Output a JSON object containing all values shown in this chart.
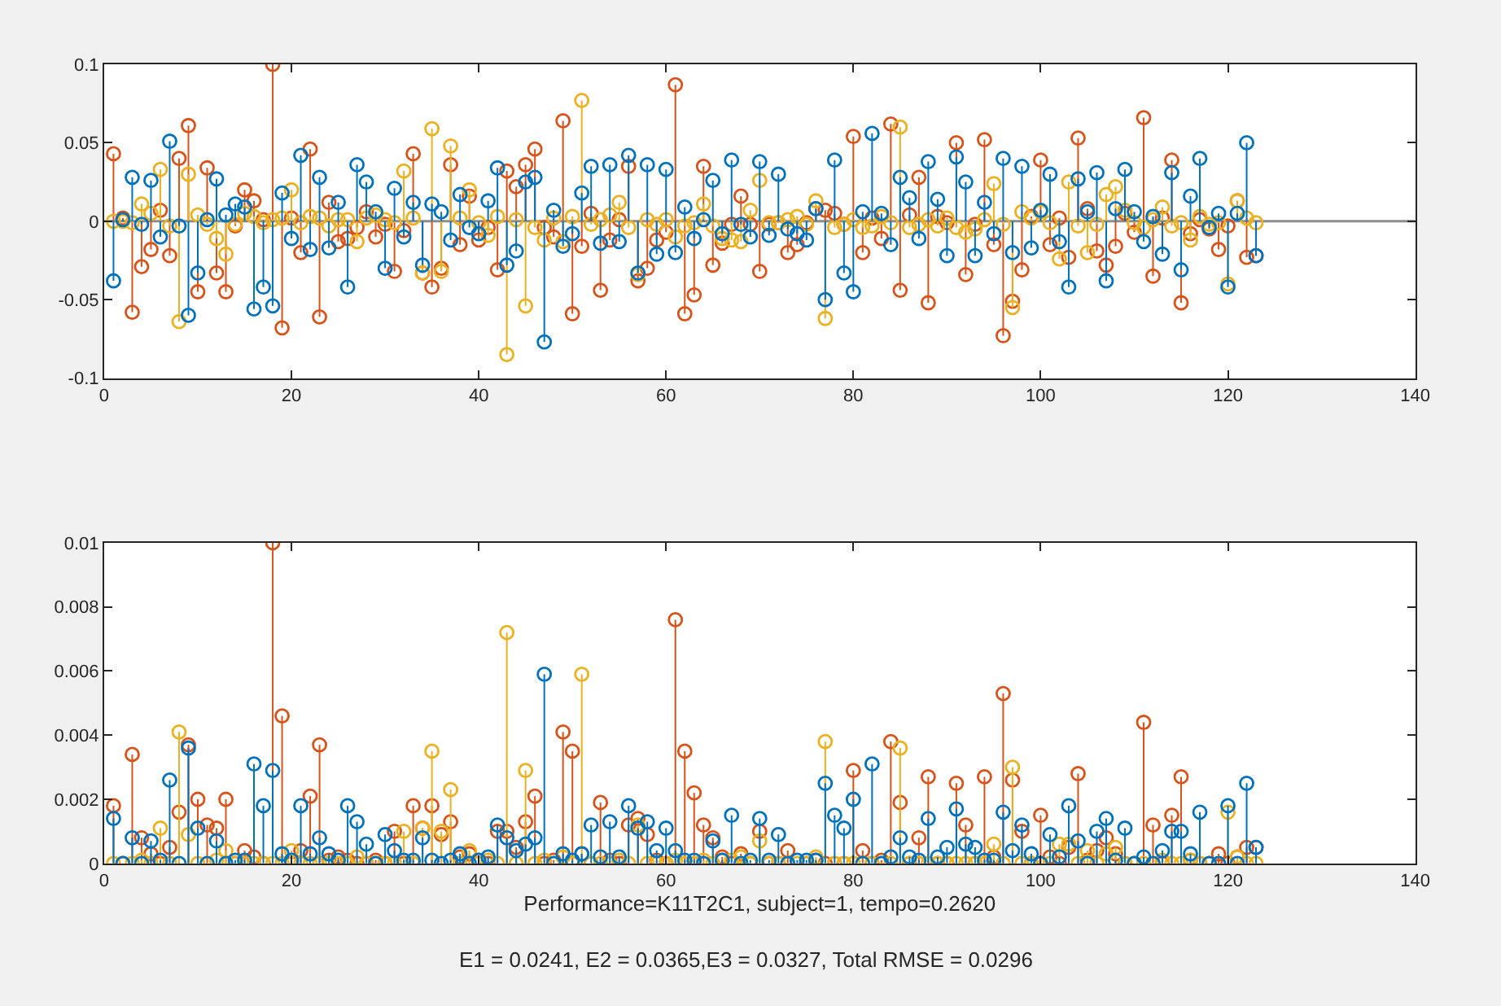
{
  "chart_data": [
    {
      "type": "lollipop",
      "marker": "circle",
      "x": [
        1,
        2,
        3,
        4,
        5,
        6,
        7,
        8,
        9,
        10,
        11,
        12,
        13,
        14,
        15,
        16,
        17,
        18,
        19,
        20,
        21,
        22,
        23,
        24,
        25,
        26,
        27,
        28,
        29,
        30,
        31,
        32,
        33,
        34,
        35,
        36,
        37,
        38,
        39,
        40,
        41,
        42,
        43,
        44,
        45,
        46,
        47,
        48,
        49,
        50,
        51,
        52,
        53,
        54,
        55,
        56,
        57,
        58,
        59,
        60,
        61,
        62,
        63,
        64,
        65,
        66,
        67,
        68,
        69,
        70,
        71,
        72,
        73,
        74,
        75,
        76,
        77,
        78,
        79,
        80,
        81,
        82,
        83,
        84,
        85,
        86,
        87,
        88,
        89,
        90,
        91,
        92,
        93,
        94,
        95,
        96,
        97,
        98,
        99,
        100,
        101,
        102,
        103,
        104,
        105,
        106,
        107,
        108,
        109,
        110,
        111,
        112,
        113,
        114,
        115,
        116,
        117,
        118,
        119,
        120,
        121,
        122,
        123
      ],
      "xlim": [
        0,
        140
      ],
      "xticks": [
        0,
        20,
        40,
        60,
        80,
        100,
        120,
        140
      ],
      "ylim": [
        -0.1,
        0.1
      ],
      "yticks": [
        -0.1,
        -0.05,
        0,
        0.05,
        0.1
      ],
      "ref_lines": [
        {
          "axis": "y",
          "value": 0,
          "color": "#8c8c8c"
        }
      ],
      "series": [
        {
          "color": "#d95319",
          "values": [
            0.043,
            0.002,
            -0.058,
            -0.029,
            -0.018,
            0.007,
            -0.022,
            0.04,
            0.061,
            -0.045,
            0.034,
            -0.033,
            -0.045,
            -0.003,
            0.02,
            0.013,
            0.001,
            0.1,
            -0.068,
            0.002,
            -0.02,
            0.046,
            -0.061,
            0.012,
            -0.013,
            -0.011,
            -0.004,
            0.006,
            -0.01,
            -0.002,
            -0.032,
            -0.006,
            0.043,
            -0.033,
            -0.042,
            -0.03,
            0.036,
            -0.015,
            0.016,
            -0.012,
            -0.004,
            -0.031,
            0.032,
            0.022,
            0.036,
            0.046,
            -0.004,
            -0.01,
            0.064,
            -0.059,
            -0.016,
            0.005,
            -0.044,
            -0.012,
            0.001,
            0.035,
            -0.038,
            -0.03,
            -0.012,
            -0.007,
            0.087,
            -0.059,
            -0.047,
            0.035,
            -0.028,
            -0.014,
            -0.002,
            0.016,
            -0.002,
            -0.032,
            -0.002,
            -0.001,
            -0.02,
            -0.015,
            -0.001,
            0.008,
            0.007,
            0.005,
            -0.002,
            0.054,
            -0.02,
            0.002,
            -0.011,
            0.062,
            -0.044,
            0.004,
            0.028,
            -0.052,
            0.003,
            -0.001,
            0.05,
            -0.034,
            -0.002,
            0.052,
            -0.015,
            -0.073,
            -0.051,
            -0.031,
            0.003,
            0.039,
            -0.015,
            0.002,
            -0.023,
            0.053,
            0.008,
            -0.019,
            -0.028,
            -0.016,
            0.005,
            -0.007,
            0.066,
            -0.035,
            0.002,
            0.039,
            -0.052,
            -0.008,
            0.001,
            -0.005,
            -0.018,
            -0.003,
            0.013,
            -0.023,
            -0.022
          ]
        },
        {
          "color": "#edb120",
          "values": [
            0.0,
            0.0,
            -0.001,
            0.011,
            0.005,
            0.033,
            -0.003,
            -0.064,
            0.03,
            0.004,
            -0.002,
            -0.011,
            -0.021,
            -0.002,
            0.005,
            0.003,
            -0.001,
            0.001,
            0.002,
            0.02,
            -0.001,
            0.003,
            0.002,
            -0.003,
            0.001,
            0.001,
            -0.013,
            0.002,
            0.004,
            0.001,
            -0.001,
            0.032,
            0.002,
            -0.033,
            0.059,
            -0.032,
            0.048,
            0.002,
            0.02,
            -0.001,
            -0.009,
            0.003,
            -0.085,
            0.001,
            -0.054,
            -0.004,
            -0.012,
            0.002,
            -0.013,
            0.003,
            0.077,
            -0.002,
            0.001,
            0.004,
            0.012,
            -0.004,
            -0.034,
            0.001,
            -0.002,
            0.001,
            -0.01,
            -0.003,
            -0.001,
            0.011,
            -0.003,
            -0.011,
            -0.012,
            -0.013,
            0.007,
            0.026,
            -0.001,
            -0.001,
            0.001,
            0.003,
            -0.002,
            0.013,
            -0.062,
            -0.004,
            -0.002,
            0.001,
            -0.004,
            -0.003,
            0.003,
            -0.001,
            0.06,
            -0.004,
            -0.002,
            0.001,
            -0.003,
            0.002,
            -0.004,
            -0.007,
            -0.005,
            0.001,
            0.024,
            -0.002,
            -0.055,
            0.006,
            0.002,
            0.006,
            -0.001,
            -0.024,
            0.025,
            -0.003,
            -0.02,
            -0.002,
            0.017,
            0.022,
            0.007,
            -0.001,
            -0.004,
            0.001,
            0.009,
            -0.003,
            -0.001,
            -0.012,
            0.003,
            -0.002,
            -0.001,
            -0.04,
            0.013,
            0.002,
            -0.001
          ]
        },
        {
          "color": "#0072bd",
          "values": [
            -0.038,
            0.001,
            0.028,
            -0.002,
            0.026,
            -0.01,
            0.051,
            -0.003,
            -0.06,
            -0.033,
            0.001,
            0.027,
            0.004,
            0.011,
            0.009,
            -0.056,
            -0.042,
            -0.054,
            0.018,
            -0.011,
            0.042,
            -0.018,
            0.028,
            -0.017,
            0.012,
            -0.042,
            0.036,
            0.025,
            0.006,
            -0.03,
            0.021,
            -0.01,
            0.012,
            -0.028,
            0.011,
            0.006,
            -0.012,
            0.017,
            -0.004,
            -0.008,
            0.013,
            0.034,
            -0.028,
            -0.019,
            0.025,
            0.028,
            -0.077,
            0.007,
            -0.016,
            -0.008,
            0.018,
            0.035,
            -0.014,
            0.036,
            -0.013,
            0.042,
            -0.033,
            0.036,
            -0.021,
            0.033,
            -0.02,
            0.009,
            -0.011,
            0.001,
            0.026,
            -0.008,
            0.039,
            -0.002,
            -0.01,
            0.038,
            -0.009,
            0.03,
            -0.005,
            -0.008,
            -0.012,
            0.008,
            -0.05,
            0.039,
            -0.033,
            -0.045,
            0.006,
            0.056,
            0.005,
            -0.015,
            0.028,
            0.015,
            -0.011,
            0.038,
            0.014,
            -0.022,
            0.041,
            0.025,
            -0.022,
            0.012,
            -0.008,
            0.04,
            -0.02,
            0.035,
            -0.017,
            0.007,
            0.03,
            -0.013,
            -0.042,
            0.027,
            0.006,
            0.031,
            -0.038,
            0.008,
            0.033,
            0.006,
            -0.013,
            0.003,
            -0.021,
            0.031,
            -0.031,
            0.016,
            0.04,
            -0.004,
            0.005,
            -0.042,
            0.005,
            0.05,
            -0.022
          ]
        }
      ]
    },
    {
      "type": "lollipop",
      "marker": "circle",
      "xlabel": "Performance=K11T2C1, subject=1, tempo=0.2620",
      "annotations": [
        "E1 = 0.0241, E2 = 0.0365,E3 = 0.0327, Total RMSE = 0.0296"
      ],
      "x": [
        1,
        2,
        3,
        4,
        5,
        6,
        7,
        8,
        9,
        10,
        11,
        12,
        13,
        14,
        15,
        16,
        17,
        18,
        19,
        20,
        21,
        22,
        23,
        24,
        25,
        26,
        27,
        28,
        29,
        30,
        31,
        32,
        33,
        34,
        35,
        36,
        37,
        38,
        39,
        40,
        41,
        42,
        43,
        44,
        45,
        46,
        47,
        48,
        49,
        50,
        51,
        52,
        53,
        54,
        55,
        56,
        57,
        58,
        59,
        60,
        61,
        62,
        63,
        64,
        65,
        66,
        67,
        68,
        69,
        70,
        71,
        72,
        73,
        74,
        75,
        76,
        77,
        78,
        79,
        80,
        81,
        82,
        83,
        84,
        85,
        86,
        87,
        88,
        89,
        90,
        91,
        92,
        93,
        94,
        95,
        96,
        97,
        98,
        99,
        100,
        101,
        102,
        103,
        104,
        105,
        106,
        107,
        108,
        109,
        110,
        111,
        112,
        113,
        114,
        115,
        116,
        117,
        118,
        119,
        120,
        121,
        122,
        123
      ],
      "xlim": [
        0,
        140
      ],
      "xticks": [
        0,
        20,
        40,
        60,
        80,
        100,
        120,
        140
      ],
      "ylim": [
        0,
        0.01
      ],
      "yticks": [
        0,
        0.002,
        0.004,
        0.006,
        0.008,
        0.01
      ],
      "series": [
        {
          "color": "#d95319",
          "values": [
            0.0018,
            0,
            0.0034,
            0.0008,
            0.0003,
            0,
            0.0005,
            0.0016,
            0.0037,
            0.002,
            0.0012,
            0.0011,
            0.002,
            0,
            0.0004,
            0.0002,
            0,
            0.01,
            0.0046,
            0,
            0.0004,
            0.0021,
            0.0037,
            0.0001,
            0.0002,
            0.0001,
            0,
            0,
            0.0001,
            0,
            0.001,
            0,
            0.0018,
            0.0011,
            0.0018,
            0.0009,
            0.0013,
            0.0002,
            0.0003,
            0.0001,
            0,
            0.001,
            0.001,
            0.0005,
            0.0013,
            0.0021,
            0,
            0.0001,
            0.0041,
            0.0035,
            0.0003,
            0,
            0.0019,
            0.0001,
            0,
            0.0012,
            0.0014,
            0.0009,
            0.0001,
            0,
            0.0076,
            0.0035,
            0.0022,
            0.0012,
            0.0008,
            0.0002,
            0,
            0.0003,
            0,
            0.001,
            0,
            0,
            0.0004,
            null,
            0,
            0.0001,
            0,
            0,
            0,
            0.0029,
            0.0004,
            0,
            0.0001,
            0.0038,
            0.0019,
            0,
            0.0008,
            0.0027,
            0,
            0,
            0.0025,
            0.0012,
            0,
            0.0027,
            0.0002,
            0.0053,
            0.0026,
            0.001,
            0,
            0.0015,
            0.0002,
            0,
            0.0005,
            0.0028,
            0.0001,
            0.0004,
            0.0008,
            0.0003,
            0,
            0,
            0.0044,
            0.0012,
            0,
            0.0015,
            0.0027,
            0.0001,
            0,
            0,
            0.0003,
            0,
            0.0002,
            0.0005,
            0.0005
          ]
        },
        {
          "color": "#edb120",
          "values": [
            0,
            0,
            0,
            0.0001,
            0,
            0.0011,
            0,
            0.0041,
            0.0009,
            0,
            0,
            0.0001,
            0.0004,
            0,
            0,
            0,
            0,
            0,
            0,
            0.0004,
            0,
            0,
            0,
            0,
            0,
            0,
            0.0002,
            0,
            0,
            0,
            0,
            0.001,
            0,
            0.0011,
            0.0035,
            0.001,
            0.0023,
            0,
            0.0004,
            0,
            0.0001,
            0,
            0.0072,
            0,
            0.0029,
            0,
            0.0001,
            0,
            0.0002,
            0,
            0.0059,
            0,
            0,
            0,
            0.0001,
            0,
            0.0012,
            0,
            0,
            0,
            0.0001,
            0,
            0,
            0.0001,
            0,
            0.0001,
            0.0001,
            0.0002,
            0,
            0.0007,
            0,
            0,
            0,
            0,
            0,
            0.0002,
            0.0038,
            0,
            0,
            0,
            0,
            0,
            0,
            0,
            0.0036,
            0,
            0,
            0,
            0,
            0,
            0,
            0,
            0,
            0,
            0.0006,
            0,
            0.003,
            0,
            0,
            0,
            0,
            0.0006,
            0.0006,
            0,
            0.0004,
            0,
            0.0003,
            0.0005,
            0,
            0,
            0,
            0,
            0.0001,
            0,
            0,
            0.0001,
            0,
            0,
            0,
            0.0016,
            0.0002,
            0,
            0
          ]
        },
        {
          "color": "#0072bd",
          "values": [
            0.0014,
            0,
            0.0008,
            0,
            0.0007,
            0.0001,
            0.0026,
            0,
            0.0036,
            0.0011,
            0,
            0.0007,
            0,
            0.0001,
            0.0001,
            0.0031,
            0.0018,
            0.0029,
            0.0003,
            0.0001,
            0.0018,
            0.0003,
            0.0008,
            0.0003,
            0.0001,
            0.0018,
            0.0013,
            0.0006,
            0,
            0.0009,
            0.0004,
            0.0001,
            0.0001,
            0.0008,
            0.0001,
            0,
            0.0001,
            0.0003,
            0,
            0.0001,
            0.0002,
            0.0012,
            0.0008,
            0.0004,
            0.0006,
            0.0008,
            0.0059,
            0,
            0.0003,
            0.0001,
            0.0003,
            0.0012,
            0.0002,
            0.0013,
            0.0002,
            0.0018,
            0.0011,
            0.0013,
            0.0004,
            0.0011,
            0.0004,
            0.0001,
            0.0001,
            0,
            0.0007,
            0.0001,
            0.0015,
            0,
            0.0001,
            0.0014,
            0.0001,
            0.0009,
            0,
            0.0001,
            0.0001,
            0.0001,
            0.0025,
            0.0015,
            0.0011,
            0.002,
            0,
            0.0031,
            0,
            0.0002,
            0.0008,
            0.0002,
            0.0001,
            0.0014,
            0.0002,
            0.0005,
            0.0017,
            0.0006,
            0.0005,
            0.0001,
            0.0001,
            0.0016,
            0.0004,
            0.0012,
            0.0003,
            0,
            0.0009,
            0.0002,
            0.0018,
            0.0007,
            0,
            0.001,
            0.0014,
            0.0001,
            0.0011,
            0,
            0.0002,
            0,
            0.0004,
            0.001,
            0.001,
            0.0003,
            0.0016,
            0,
            0,
            0.0018,
            0,
            0.0025,
            0.0005
          ]
        }
      ]
    }
  ]
}
